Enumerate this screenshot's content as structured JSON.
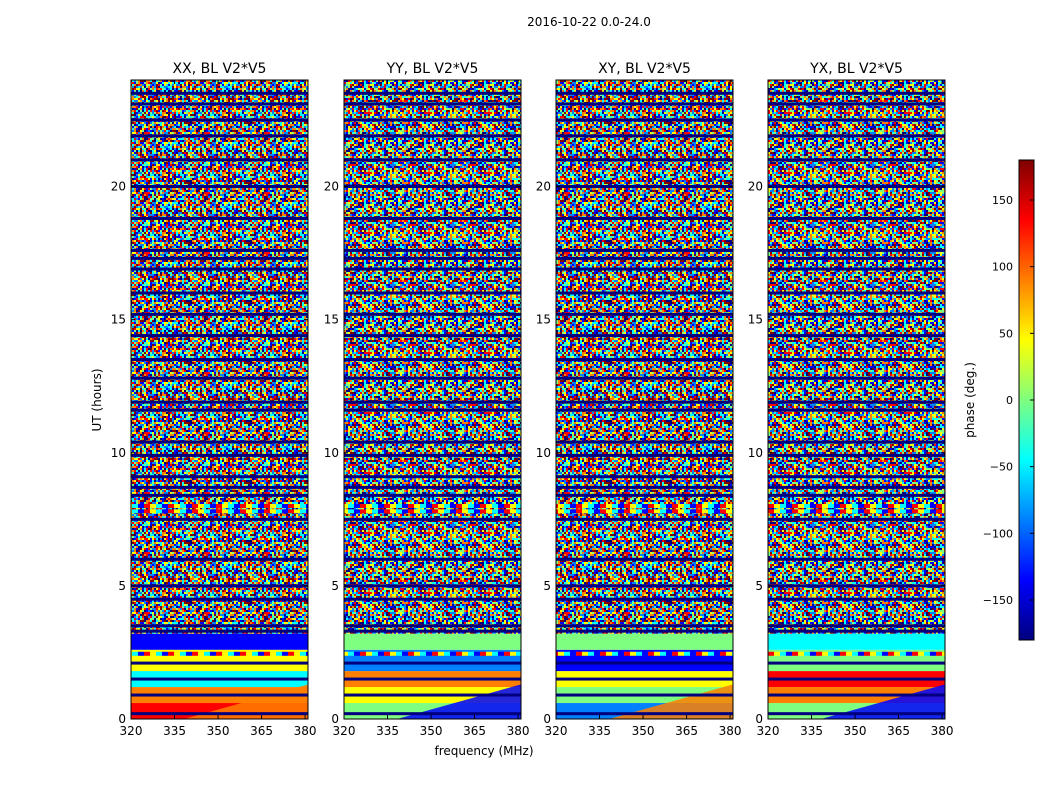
{
  "figure_title": "2016-10-22 0.0-24.0",
  "colors": {
    "jet_stops": [
      "#00007f",
      "#0000ff",
      "#007fff",
      "#00ffff",
      "#7fff7f",
      "#ffff00",
      "#ff7f00",
      "#ff0000",
      "#7f0000"
    ]
  },
  "chart_data": [
    {
      "type": "heatmap",
      "title": "XX, BL V2*V5",
      "xlabel": "",
      "ylabel": "UT (hours)",
      "xlim": [
        320,
        381
      ],
      "ylim": [
        0,
        24
      ],
      "xticks": [
        320,
        335,
        350,
        365,
        380
      ],
      "xtick_labels": [
        "320",
        "335",
        "350",
        "365",
        "380"
      ],
      "yticks": [
        0,
        5,
        10,
        15,
        20
      ],
      "ytick_labels": [
        "0",
        "5",
        "10",
        "15",
        "20"
      ]
    },
    {
      "type": "heatmap",
      "title": "YY, BL V2*V5",
      "xlabel": "frequency (MHz)",
      "ylabel": "",
      "xlim": [
        320,
        381
      ],
      "ylim": [
        0,
        24
      ],
      "xticks": [
        320,
        335,
        350,
        365,
        380
      ],
      "xtick_labels": [
        "320",
        "335",
        "350",
        "365",
        "380"
      ],
      "yticks": [
        0,
        5,
        10,
        15,
        20
      ],
      "ytick_labels": [
        "0",
        "5",
        "10",
        "15",
        "20"
      ]
    },
    {
      "type": "heatmap",
      "title": "XY, BL V2*V5",
      "xlabel": "",
      "ylabel": "",
      "xlim": [
        320,
        381
      ],
      "ylim": [
        0,
        24
      ],
      "xticks": [
        320,
        335,
        350,
        365,
        380
      ],
      "xtick_labels": [
        "320",
        "335",
        "350",
        "365",
        "380"
      ],
      "yticks": [
        0,
        5,
        10,
        15,
        20
      ],
      "ytick_labels": [
        "0",
        "5",
        "10",
        "15",
        "20"
      ]
    },
    {
      "type": "heatmap",
      "title": "YX, BL V2*V5",
      "xlabel": "",
      "ylabel": "",
      "xlim": [
        320,
        381
      ],
      "ylim": [
        0,
        24
      ],
      "xticks": [
        320,
        335,
        350,
        365,
        380
      ],
      "xtick_labels": [
        "320",
        "335",
        "350",
        "365",
        "380"
      ],
      "yticks": [
        0,
        5,
        10,
        15,
        20
      ],
      "ytick_labels": [
        "0",
        "5",
        "10",
        "15",
        "20"
      ]
    }
  ],
  "colorbar": {
    "label": "phase (deg.)",
    "range": [
      -180,
      180
    ],
    "ticks": [
      150,
      100,
      50,
      0,
      -50,
      -100,
      -150
    ],
    "tick_labels": [
      "150",
      "100",
      "50",
      "0",
      "−50",
      "−100",
      "−150"
    ]
  }
}
